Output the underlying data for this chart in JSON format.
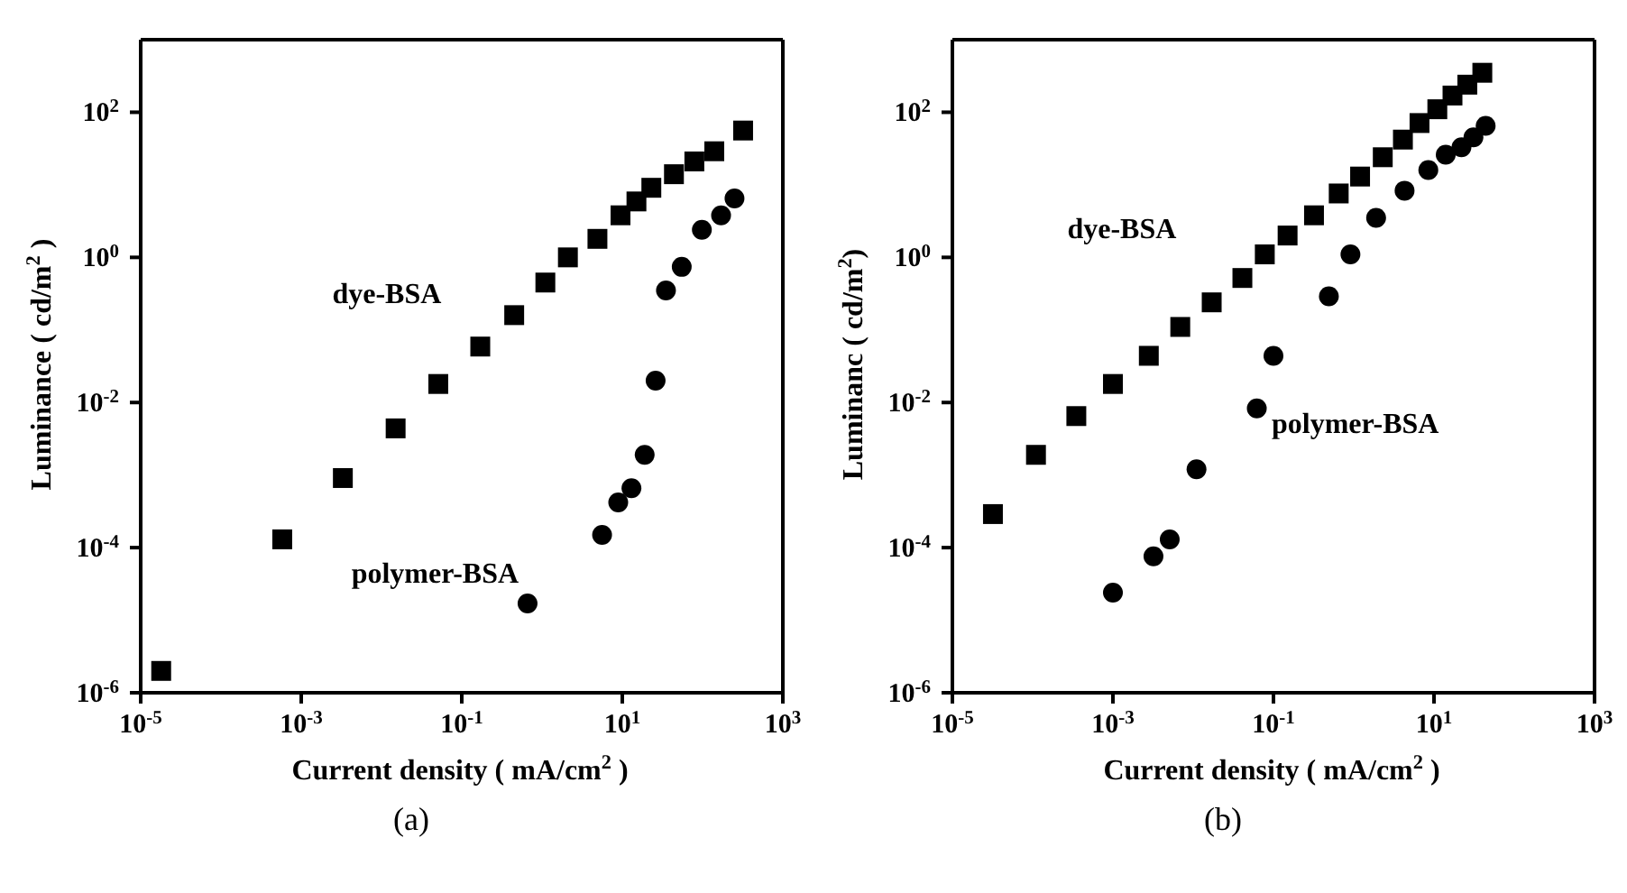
{
  "chart_data": [
    {
      "type": "scatter",
      "title": "(a)",
      "xlabel": "Current density ( mA/cm$^{2}$ )",
      "ylabel": "Luminance ( cd/m$^{2}$ )",
      "log": "xy",
      "xlim": [
        1e-05,
        1000
      ],
      "ylim": [
        1e-06,
        1000
      ],
      "xticks": [
        {
          "value": 1e-05,
          "label": "10$^{-5}$"
        },
        {
          "value": 0.001,
          "label": "10$^{-3}$"
        },
        {
          "value": 0.1,
          "label": "10$^{-1}$"
        },
        {
          "value": 10,
          "label": "10$^{1}$"
        },
        {
          "value": 1000,
          "label": "10$^{3}$"
        }
      ],
      "yticks": [
        {
          "value": 1e-06,
          "label": "10$^{-6}$"
        },
        {
          "value": 0.0001,
          "label": "10$^{-4}$"
        },
        {
          "value": 0.01,
          "label": "10$^{-2}$"
        },
        {
          "value": 1,
          "label": "10$^{0}$"
        },
        {
          "value": 100,
          "label": "10$^{2}$"
        }
      ],
      "series": [
        {
          "name": "dye-BSA",
          "color": "#000000",
          "marker": "square",
          "x": [
            1.8e-05,
            0.00058,
            0.0033,
            0.015,
            0.051,
            0.17,
            0.45,
            1.1,
            2.1,
            4.9,
            9.5,
            15,
            23,
            44,
            79,
            140,
            320
          ],
          "values": [
            2e-06,
            0.00013,
            0.00091,
            0.0044,
            0.018,
            0.059,
            0.16,
            0.45,
            1.0,
            1.8,
            3.8,
            5.9,
            9.1,
            14,
            21,
            29,
            56
          ]
        },
        {
          "name": "polymer-BSA",
          "color": "#000000",
          "marker": "circle",
          "x": [
            0.66,
            5.6,
            8.9,
            13,
            19,
            26,
            35,
            55,
            98,
            170,
            250
          ],
          "values": [
            1.7e-05,
            0.00015,
            0.00042,
            0.00066,
            0.0019,
            0.02,
            0.35,
            0.74,
            2.4,
            3.8,
            6.5
          ]
        }
      ]
    },
    {
      "type": "scatter",
      "title": "(b)",
      "xlabel": "Current density ( mA/cm$^{2}$ )",
      "ylabel": "Luminanc ( cd/m$^{2}$)",
      "log": "xy",
      "xlim": [
        1e-05,
        1000
      ],
      "ylim": [
        1e-06,
        1000
      ],
      "xticks": [
        {
          "value": 1e-05,
          "label": "10$^{-5}$"
        },
        {
          "value": 0.001,
          "label": "10$^{-3}$"
        },
        {
          "value": 0.1,
          "label": "10$^{-1}$"
        },
        {
          "value": 10,
          "label": "10$^{1}$"
        },
        {
          "value": 1000,
          "label": "10$^{3}$"
        }
      ],
      "yticks": [
        {
          "value": 1e-06,
          "label": "10$^{-6}$"
        },
        {
          "value": 0.0001,
          "label": "10$^{-4}$"
        },
        {
          "value": 0.01,
          "label": "10$^{-2}$"
        },
        {
          "value": 1,
          "label": "10$^{0}$"
        },
        {
          "value": 100,
          "label": "10$^{2}$"
        }
      ],
      "series": [
        {
          "name": "dye-BSA",
          "color": "#000000",
          "marker": "square",
          "x": [
            3.2e-05,
            0.00011,
            0.00035,
            0.001,
            0.0028,
            0.0069,
            0.017,
            0.041,
            0.078,
            0.15,
            0.32,
            0.65,
            1.2,
            2.3,
            4.1,
            6.6,
            11,
            17,
            26,
            40
          ],
          "values": [
            0.00029,
            0.0019,
            0.0065,
            0.018,
            0.044,
            0.11,
            0.24,
            0.52,
            1.1,
            2.0,
            3.8,
            7.6,
            13,
            24,
            42,
            71,
            110,
            170,
            240,
            350
          ]
        },
        {
          "name": "polymer-BSA",
          "color": "#000000",
          "marker": "circle",
          "x": [
            0.001,
            0.0032,
            0.0051,
            0.011,
            0.062,
            0.1,
            0.49,
            0.91,
            1.9,
            4.3,
            8.5,
            14,
            22,
            31,
            44
          ],
          "values": [
            2.4e-05,
            7.6e-05,
            0.00013,
            0.0012,
            0.0083,
            0.044,
            0.29,
            1.1,
            3.5,
            8.3,
            16,
            26,
            33,
            45,
            65
          ]
        }
      ]
    }
  ]
}
